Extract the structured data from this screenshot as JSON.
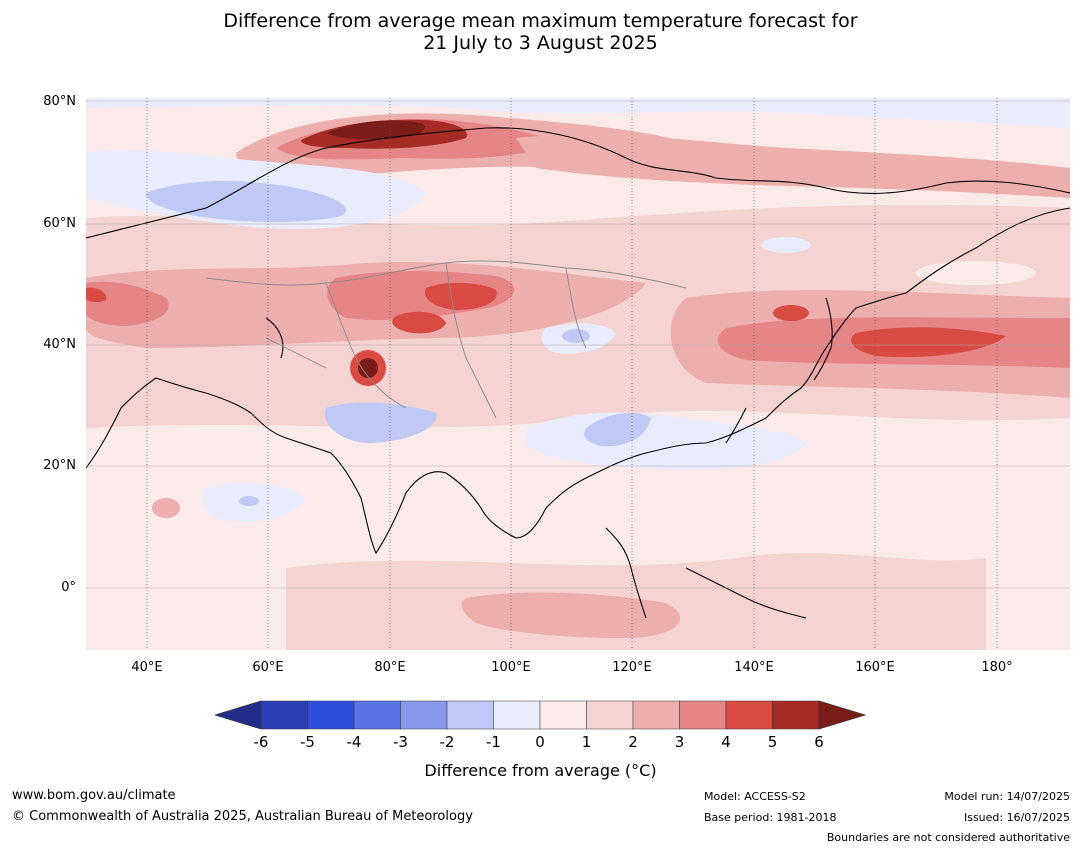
{
  "title": {
    "line1": "Difference from average mean maximum temperature forecast for",
    "line2": "21 July to 3 August 2025"
  },
  "axes": {
    "lat_labels": [
      "80°N",
      "60°N",
      "40°N",
      "20°N",
      "0°"
    ],
    "lon_labels": [
      "40°E",
      "60°E",
      "80°E",
      "100°E",
      "120°E",
      "140°E",
      "160°E",
      "180°"
    ]
  },
  "colorbar": {
    "ticks": [
      "-6",
      "-5",
      "-4",
      "-3",
      "-2",
      "-1",
      "0",
      "1",
      "2",
      "3",
      "4",
      "5",
      "6"
    ],
    "colors": [
      "#232e8c",
      "#2b3fb5",
      "#2f4ede",
      "#5b73e6",
      "#8899ec",
      "#c0c8f5",
      "#e9ecfc",
      "#fcebeb",
      "#f5d3d3",
      "#edaeae",
      "#e68585",
      "#d84a42",
      "#a72b25",
      "#7a1c18"
    ],
    "label": "Difference from average (°C)"
  },
  "map_data": {
    "region": "Asia and western Pacific",
    "lat_range": [
      "10°S",
      "80°N"
    ],
    "lon_range": [
      "30°E",
      "190°E"
    ],
    "features": [
      {
        "name": "northern-siberia-warm",
        "level": "+5 to +6"
      },
      {
        "name": "west-siberia-cool",
        "level": "-1 to -2"
      },
      {
        "name": "central-asia-warm",
        "level": "+3 to +4"
      },
      {
        "name": "tibet-hotspot",
        "level": "+5 to +6"
      },
      {
        "name": "north-pacific-warm",
        "level": "+3 to +4"
      },
      {
        "name": "south-china-cool",
        "level": "-1 to -2"
      },
      {
        "name": "india-cool",
        "level": "-1 to -2"
      }
    ]
  },
  "footer": {
    "website": "www.bom.gov.au/climate",
    "copyright": "© Commonwealth of Australia 2025, Australian Bureau of Meteorology",
    "model": "Model: ACCESS-S2",
    "base_period": "Base period: 1981-2018",
    "model_run": "Model run: 14/07/2025",
    "issued": "Issued: 16/07/2025",
    "disclaimer": "Boundaries are not considered authoritative"
  }
}
